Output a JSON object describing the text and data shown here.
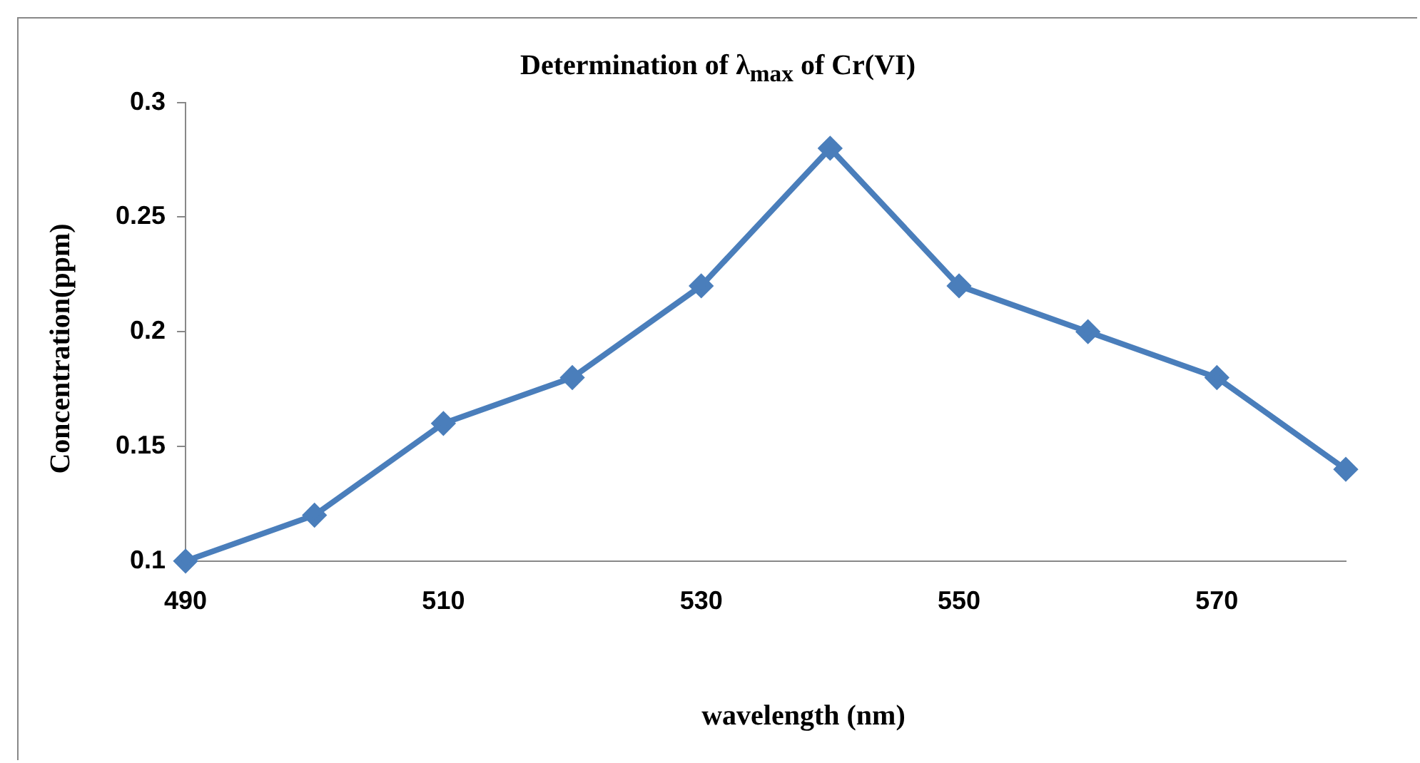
{
  "chart_data": {
    "type": "line",
    "title": "Determination of λ$_{max}$ of Cr(VI)",
    "xlabel": "wavelength (nm)",
    "ylabel": "Concentration(ppm)",
    "x": [
      490,
      500,
      510,
      520,
      530,
      540,
      550,
      560,
      570,
      580
    ],
    "series": [
      {
        "color": "#4a7ebb",
        "values": [
          0.1,
          0.12,
          0.16,
          0.18,
          0.22,
          0.28,
          0.22,
          0.2,
          0.18,
          0.14
        ]
      }
    ],
    "xlim": [
      490,
      580
    ],
    "xticks": [
      490,
      510,
      530,
      550,
      570
    ],
    "ylim": [
      0.1,
      0.3
    ],
    "yticks": [
      0.1,
      0.15,
      0.2,
      0.25,
      0.3
    ],
    "grid": false,
    "legend": false,
    "marker": "diamond",
    "line_style": "solid"
  }
}
